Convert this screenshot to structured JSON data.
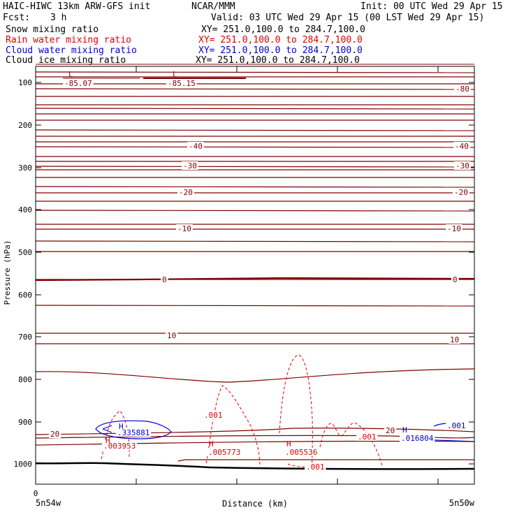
{
  "header": {
    "title": "HAIC-HIWC 13km ARW-GFS init",
    "org": "NCAR/MMM",
    "init": "Init: 00 UTC Wed 29 Apr 15",
    "fcst_label": "Fcst:",
    "fcst_value": "3 h",
    "valid": "Valid: 03 UTC Wed 29 Apr 15 (00 LST Wed 29 Apr 15)"
  },
  "fields": [
    {
      "name": "Snow mixing ratio",
      "xy": "XY= 251.0,100.0 to 284.7,100.0",
      "color": "#000000"
    },
    {
      "name": "Rain water mixing ratio",
      "xy": "XY= 251.0,100.0 to 284.7,100.0",
      "color": "#e00000"
    },
    {
      "name": "Cloud water mixing ratio",
      "xy": "XY= 251.0,100.0 to 284.7,100.0",
      "color": "#0000d0"
    },
    {
      "name": "Cloud ice mixing ratio",
      "xy": "XY= 251.0,100.0 to 284.7,100.0",
      "color": "#000000"
    }
  ],
  "chart_data": {
    "type": "line",
    "xlabel": "Distance (km)",
    "ylabel": "Pressure (hPa)",
    "yticks": [
      "100",
      "200",
      "300",
      "400",
      "500",
      "600",
      "700",
      "800",
      "900",
      "1000"
    ],
    "x_origin_label": "0",
    "x_left_label": "5n54w",
    "x_right_label": "5n50w",
    "colors": {
      "temperature": "#800000",
      "rain": "#e00000",
      "cloud_water": "#0000d0",
      "ground": "#000000"
    },
    "contour_labels": [
      "-85.07",
      "-85.15",
      "-80",
      "-40",
      "-40",
      "-30",
      "-30",
      "-20",
      "-20",
      "-10",
      "-10",
      "0",
      "0",
      "10",
      "10",
      "20",
      "20",
      ".001",
      ".001",
      ".001",
      ".001",
      ".003953",
      ".005773",
      ".005536",
      ".335881",
      ".016804"
    ],
    "extrema": [
      "L",
      "L",
      "H",
      "H",
      "H",
      "H",
      "H"
    ]
  }
}
